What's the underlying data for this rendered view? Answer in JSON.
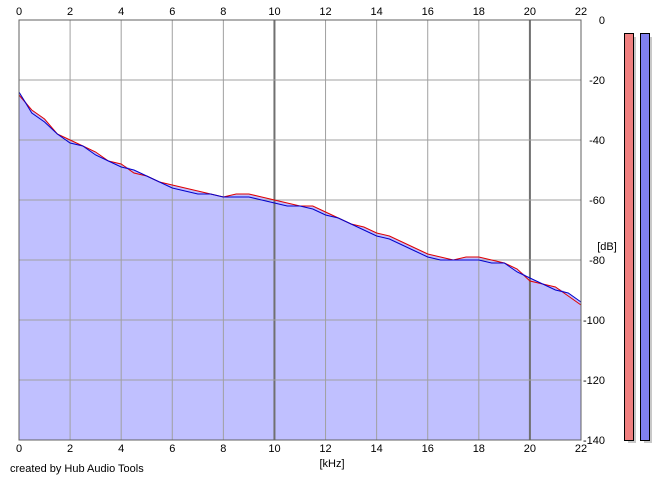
{
  "chart_data": {
    "type": "line",
    "xlabel": "[kHz]",
    "ylabel": "[dB]",
    "xlim": [
      0,
      22
    ],
    "ylim": [
      -140,
      0
    ],
    "x_ticks": [
      "0",
      "2",
      "4",
      "6",
      "8",
      "10",
      "12",
      "14",
      "16",
      "18",
      "20",
      "22"
    ],
    "y_ticks": [
      "0",
      "-20",
      "-40",
      "-60",
      "-80",
      "-100",
      "-120",
      "-140"
    ],
    "grid": true,
    "fill_color": "#c0c0ff",
    "series": [
      {
        "color": "#e00000",
        "x": [
          0.0,
          0.5,
          1.0,
          1.5,
          2.0,
          2.5,
          3.0,
          3.5,
          4.0,
          4.5,
          5.0,
          5.5,
          6.0,
          6.5,
          7.0,
          7.5,
          8.0,
          8.5,
          9.0,
          9.5,
          10.0,
          10.5,
          11.0,
          11.5,
          12.0,
          12.5,
          13.0,
          13.5,
          14.0,
          14.5,
          15.0,
          15.5,
          16.0,
          16.5,
          17.0,
          17.5,
          18.0,
          18.5,
          19.0,
          19.5,
          20.0,
          20.5,
          21.0,
          21.5,
          22.0
        ],
        "y": [
          -25,
          -30,
          -33,
          -38,
          -40,
          -42,
          -44,
          -47,
          -48,
          -51,
          -52,
          -54,
          -55,
          -56,
          -57,
          -58,
          -59,
          -58,
          -58,
          -59,
          -60,
          -61,
          -62,
          -62,
          -64,
          -66,
          -68,
          -69,
          -71,
          -72,
          -74,
          -76,
          -78,
          -79,
          -80,
          -79,
          -79,
          -80,
          -81,
          -83,
          -87,
          -88,
          -89,
          -92,
          -95
        ]
      },
      {
        "color": "#0000cc",
        "x": [
          0.0,
          0.5,
          1.0,
          1.5,
          2.0,
          2.5,
          3.0,
          3.5,
          4.0,
          4.5,
          5.0,
          5.5,
          6.0,
          6.5,
          7.0,
          7.5,
          8.0,
          8.5,
          9.0,
          9.5,
          10.0,
          10.5,
          11.0,
          11.5,
          12.0,
          12.5,
          13.0,
          13.5,
          14.0,
          14.5,
          15.0,
          15.5,
          16.0,
          16.5,
          17.0,
          17.5,
          18.0,
          18.5,
          19.0,
          19.5,
          20.0,
          20.5,
          21.0,
          21.5,
          22.0
        ],
        "y": [
          -24,
          -31,
          -34,
          -38,
          -41,
          -42,
          -45,
          -47,
          -49,
          -50,
          -52,
          -54,
          -56,
          -57,
          -58,
          -58,
          -59,
          -59,
          -59,
          -60,
          -61,
          -62,
          -62,
          -63,
          -65,
          -66,
          -68,
          -70,
          -72,
          -73,
          -75,
          -77,
          -79,
          -80,
          -80,
          -80,
          -80,
          -81,
          -81,
          -84,
          -86,
          -88,
          -90,
          -91,
          -94
        ]
      }
    ]
  },
  "meters": [
    {
      "color": "#f08080",
      "level": 1.0
    },
    {
      "color": "#8080f0",
      "level": 1.0
    }
  ],
  "footer": {
    "credit": "created by Hub Audio Tools"
  }
}
